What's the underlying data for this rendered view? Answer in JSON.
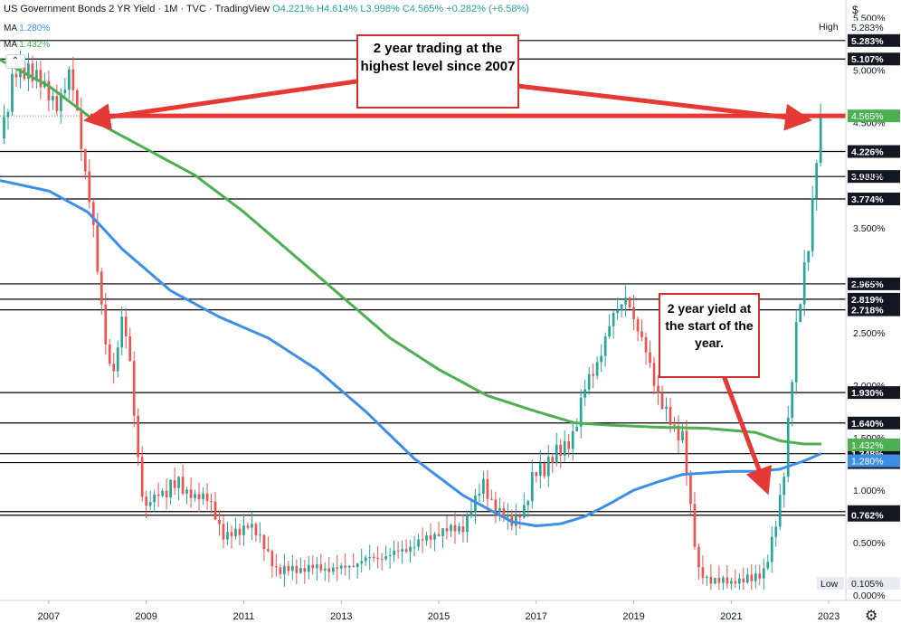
{
  "header": {
    "title": "US Government Bonds 2 YR Yield · 1M · TVC · TradingView",
    "ohlc": "O4.221%  H4.614%  L3.998%  C4.565%  +0.282% (+6.58%)",
    "ma_fast_label": "MA",
    "ma_fast_value": "1.280%",
    "ma_slow_label": "MA",
    "ma_slow_value": "1.432%"
  },
  "annotations": {
    "top_note": "2 year trading at the highest level since 2007",
    "side_note": "2 year yield at the start of the year."
  },
  "chart_data": {
    "type": "candlestick",
    "title": "US Government Bonds 2 YR Yield",
    "interval": "1M",
    "x_ticks": [
      "2007",
      "2009",
      "2011",
      "2013",
      "2015",
      "2017",
      "2019",
      "2021",
      "2023"
    ],
    "y_ticks": [
      "5.500%",
      "5.000%",
      "4.500%",
      "4.000%",
      "3.500%",
      "3.000%",
      "2.500%",
      "2.000%",
      "1.500%",
      "1.000%",
      "0.500%",
      "0.000%"
    ],
    "ylim": [
      -0.05,
      5.6
    ],
    "xlim": [
      2006.0,
      2023.35
    ],
    "high_label": "High",
    "high_value": "5.283%",
    "low_label": "Low",
    "low_value": "0.105%",
    "last_price": "4.565%",
    "horizontal_levels": [
      5.283,
      5.107,
      4.226,
      3.988,
      3.774,
      2.965,
      2.819,
      2.718,
      1.93,
      1.64,
      1.348,
      1.263,
      0.796,
      0.762
    ],
    "level_labels": [
      "5.283%",
      "5.107%",
      "4.226%",
      "3.988%",
      "3.774%",
      "2.965%",
      "2.819%",
      "2.718%",
      "1.930%",
      "1.640%",
      "1.348%",
      "1.263%",
      "0.796%",
      "0.762%"
    ],
    "ma_fast_label": "1.280%",
    "ma_slow_label": "1.432%",
    "colors": {
      "up": "#26a69a",
      "down": "#ef5350",
      "ma_fast": "#3d8fe6",
      "ma_slow": "#4caf50",
      "arrow": "#e53935",
      "last": "#4caf50"
    },
    "close_anchors": [
      [
        2006.0,
        4.35
      ],
      [
        2006.3,
        4.95
      ],
      [
        2006.6,
        5.05
      ],
      [
        2006.9,
        4.8
      ],
      [
        2007.2,
        4.7
      ],
      [
        2007.45,
        4.95
      ],
      [
        2007.6,
        4.55
      ],
      [
        2007.75,
        4.05
      ],
      [
        2007.9,
        3.55
      ],
      [
        2008.0,
        3.05
      ],
      [
        2008.2,
        2.3
      ],
      [
        2008.35,
        2.15
      ],
      [
        2008.5,
        2.6
      ],
      [
        2008.65,
        2.3
      ],
      [
        2008.8,
        1.5
      ],
      [
        2008.95,
        0.8
      ],
      [
        2009.2,
        0.95
      ],
      [
        2009.5,
        1.05
      ],
      [
        2009.8,
        1.0
      ],
      [
        2010.0,
        0.95
      ],
      [
        2010.3,
        0.9
      ],
      [
        2010.6,
        0.55
      ],
      [
        2010.9,
        0.6
      ],
      [
        2011.1,
        0.7
      ],
      [
        2011.3,
        0.55
      ],
      [
        2011.5,
        0.4
      ],
      [
        2011.7,
        0.22
      ],
      [
        2012.0,
        0.25
      ],
      [
        2012.5,
        0.26
      ],
      [
        2013.0,
        0.25
      ],
      [
        2013.5,
        0.34
      ],
      [
        2014.0,
        0.38
      ],
      [
        2014.5,
        0.48
      ],
      [
        2015.0,
        0.6
      ],
      [
        2015.5,
        0.65
      ],
      [
        2015.9,
        1.05
      ],
      [
        2016.2,
        0.8
      ],
      [
        2016.5,
        0.7
      ],
      [
        2016.8,
        0.85
      ],
      [
        2017.0,
        1.2
      ],
      [
        2017.5,
        1.35
      ],
      [
        2017.8,
        1.6
      ],
      [
        2018.0,
        1.95
      ],
      [
        2018.3,
        2.3
      ],
      [
        2018.6,
        2.65
      ],
      [
        2018.85,
        2.9
      ],
      [
        2019.05,
        2.5
      ],
      [
        2019.3,
        2.3
      ],
      [
        2019.55,
        1.8
      ],
      [
        2019.8,
        1.6
      ],
      [
        2020.0,
        1.55
      ],
      [
        2020.15,
        0.9
      ],
      [
        2020.3,
        0.25
      ],
      [
        2020.6,
        0.13
      ],
      [
        2021.0,
        0.12
      ],
      [
        2021.4,
        0.15
      ],
      [
        2021.7,
        0.25
      ],
      [
        2021.95,
        0.73
      ],
      [
        2022.1,
        1.3
      ],
      [
        2022.3,
        2.4
      ],
      [
        2022.45,
        2.9
      ],
      [
        2022.6,
        3.4
      ],
      [
        2022.75,
        4.22
      ],
      [
        2022.85,
        4.565
      ]
    ],
    "ma_fast_anchors": [
      [
        2006.0,
        3.95
      ],
      [
        2007.0,
        3.85
      ],
      [
        2007.8,
        3.65
      ],
      [
        2008.5,
        3.3
      ],
      [
        2009.5,
        2.9
      ],
      [
        2010.5,
        2.65
      ],
      [
        2011.5,
        2.45
      ],
      [
        2012.5,
        2.15
      ],
      [
        2013.5,
        1.75
      ],
      [
        2014.5,
        1.3
      ],
      [
        2015.5,
        0.95
      ],
      [
        2016.5,
        0.7
      ],
      [
        2017.0,
        0.66
      ],
      [
        2017.5,
        0.68
      ],
      [
        2018.0,
        0.75
      ],
      [
        2018.5,
        0.87
      ],
      [
        2019.0,
        1.0
      ],
      [
        2019.5,
        1.08
      ],
      [
        2020.0,
        1.15
      ],
      [
        2021.0,
        1.18
      ],
      [
        2021.5,
        1.18
      ],
      [
        2022.0,
        1.2
      ],
      [
        2022.5,
        1.28
      ],
      [
        2022.85,
        1.35
      ]
    ],
    "ma_slow_anchors": [
      [
        2006.0,
        5.1
      ],
      [
        2007.0,
        4.85
      ],
      [
        2008.0,
        4.5
      ],
      [
        2009.0,
        4.25
      ],
      [
        2010.0,
        4.0
      ],
      [
        2011.0,
        3.65
      ],
      [
        2012.0,
        3.25
      ],
      [
        2013.0,
        2.85
      ],
      [
        2014.0,
        2.45
      ],
      [
        2015.0,
        2.15
      ],
      [
        2016.0,
        1.9
      ],
      [
        2017.0,
        1.75
      ],
      [
        2017.8,
        1.64
      ],
      [
        2018.5,
        1.62
      ],
      [
        2019.5,
        1.6
      ],
      [
        2020.5,
        1.59
      ],
      [
        2021.5,
        1.55
      ],
      [
        2022.0,
        1.47
      ],
      [
        2022.5,
        1.44
      ],
      [
        2022.85,
        1.44
      ]
    ]
  }
}
